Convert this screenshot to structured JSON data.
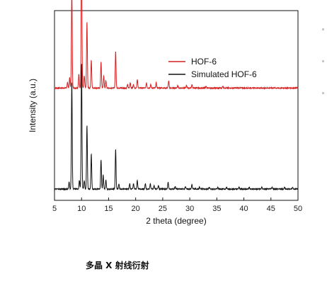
{
  "caption": "多晶 X 射线衍射",
  "chart_data": {
    "type": "line",
    "title": "",
    "xlabel": "2 theta (degree)",
    "ylabel": "Intensity (a.u.)",
    "xlim": [
      5,
      50
    ],
    "x_ticks": [
      5,
      10,
      15,
      20,
      25,
      30,
      35,
      40,
      45,
      50
    ],
    "y_ticks_shown": false,
    "grid": false,
    "legend": {
      "placement": "top-right"
    },
    "series": [
      {
        "name": "HOF-6",
        "color": "#d42020",
        "baseline": 0.58,
        "peaks": [
          [
            7.4,
            0.03
          ],
          [
            7.8,
            0.06
          ],
          [
            8.2,
            0.56
          ],
          [
            9.5,
            0.08
          ],
          [
            10.0,
            0.82
          ],
          [
            10.5,
            0.07
          ],
          [
            11.0,
            0.38
          ],
          [
            11.8,
            0.16
          ],
          [
            13.6,
            0.15
          ],
          [
            14.1,
            0.07
          ],
          [
            14.5,
            0.04
          ],
          [
            16.3,
            0.21
          ],
          [
            18.5,
            0.02
          ],
          [
            19.0,
            0.03
          ],
          [
            19.6,
            0.02
          ],
          [
            20.3,
            0.05
          ],
          [
            22.0,
            0.03
          ],
          [
            22.8,
            0.02
          ],
          [
            23.8,
            0.03
          ],
          [
            26.1,
            0.04
          ],
          [
            27.8,
            0.015
          ],
          [
            29.4,
            0.015
          ],
          [
            30.4,
            0.02
          ],
          [
            33.0,
            0.01
          ],
          [
            36.1,
            0.01
          ]
        ]
      },
      {
        "name": "Simulated HOF-6",
        "color": "#111111",
        "baseline": 0.0,
        "peaks": [
          [
            7.7,
            0.04
          ],
          [
            8.2,
            0.62
          ],
          [
            9.6,
            0.05
          ],
          [
            10.0,
            0.73
          ],
          [
            10.5,
            0.05
          ],
          [
            11.0,
            0.37
          ],
          [
            11.8,
            0.2
          ],
          [
            13.6,
            0.17
          ],
          [
            14.0,
            0.08
          ],
          [
            14.5,
            0.05
          ],
          [
            16.3,
            0.23
          ],
          [
            16.9,
            0.03
          ],
          [
            18.9,
            0.03
          ],
          [
            19.6,
            0.03
          ],
          [
            20.3,
            0.05
          ],
          [
            21.8,
            0.03
          ],
          [
            22.7,
            0.03
          ],
          [
            23.4,
            0.02
          ],
          [
            24.2,
            0.02
          ],
          [
            26.0,
            0.04
          ],
          [
            27.3,
            0.015
          ],
          [
            29.2,
            0.015
          ],
          [
            30.4,
            0.025
          ],
          [
            31.8,
            0.01
          ],
          [
            33.6,
            0.01
          ],
          [
            35.2,
            0.01
          ],
          [
            36.8,
            0.01
          ],
          [
            39.1,
            0.01
          ],
          [
            41.0,
            0.01
          ],
          [
            43.3,
            0.01
          ],
          [
            45.2,
            0.01
          ],
          [
            47.5,
            0.01
          ],
          [
            49.0,
            0.01
          ]
        ]
      }
    ]
  }
}
